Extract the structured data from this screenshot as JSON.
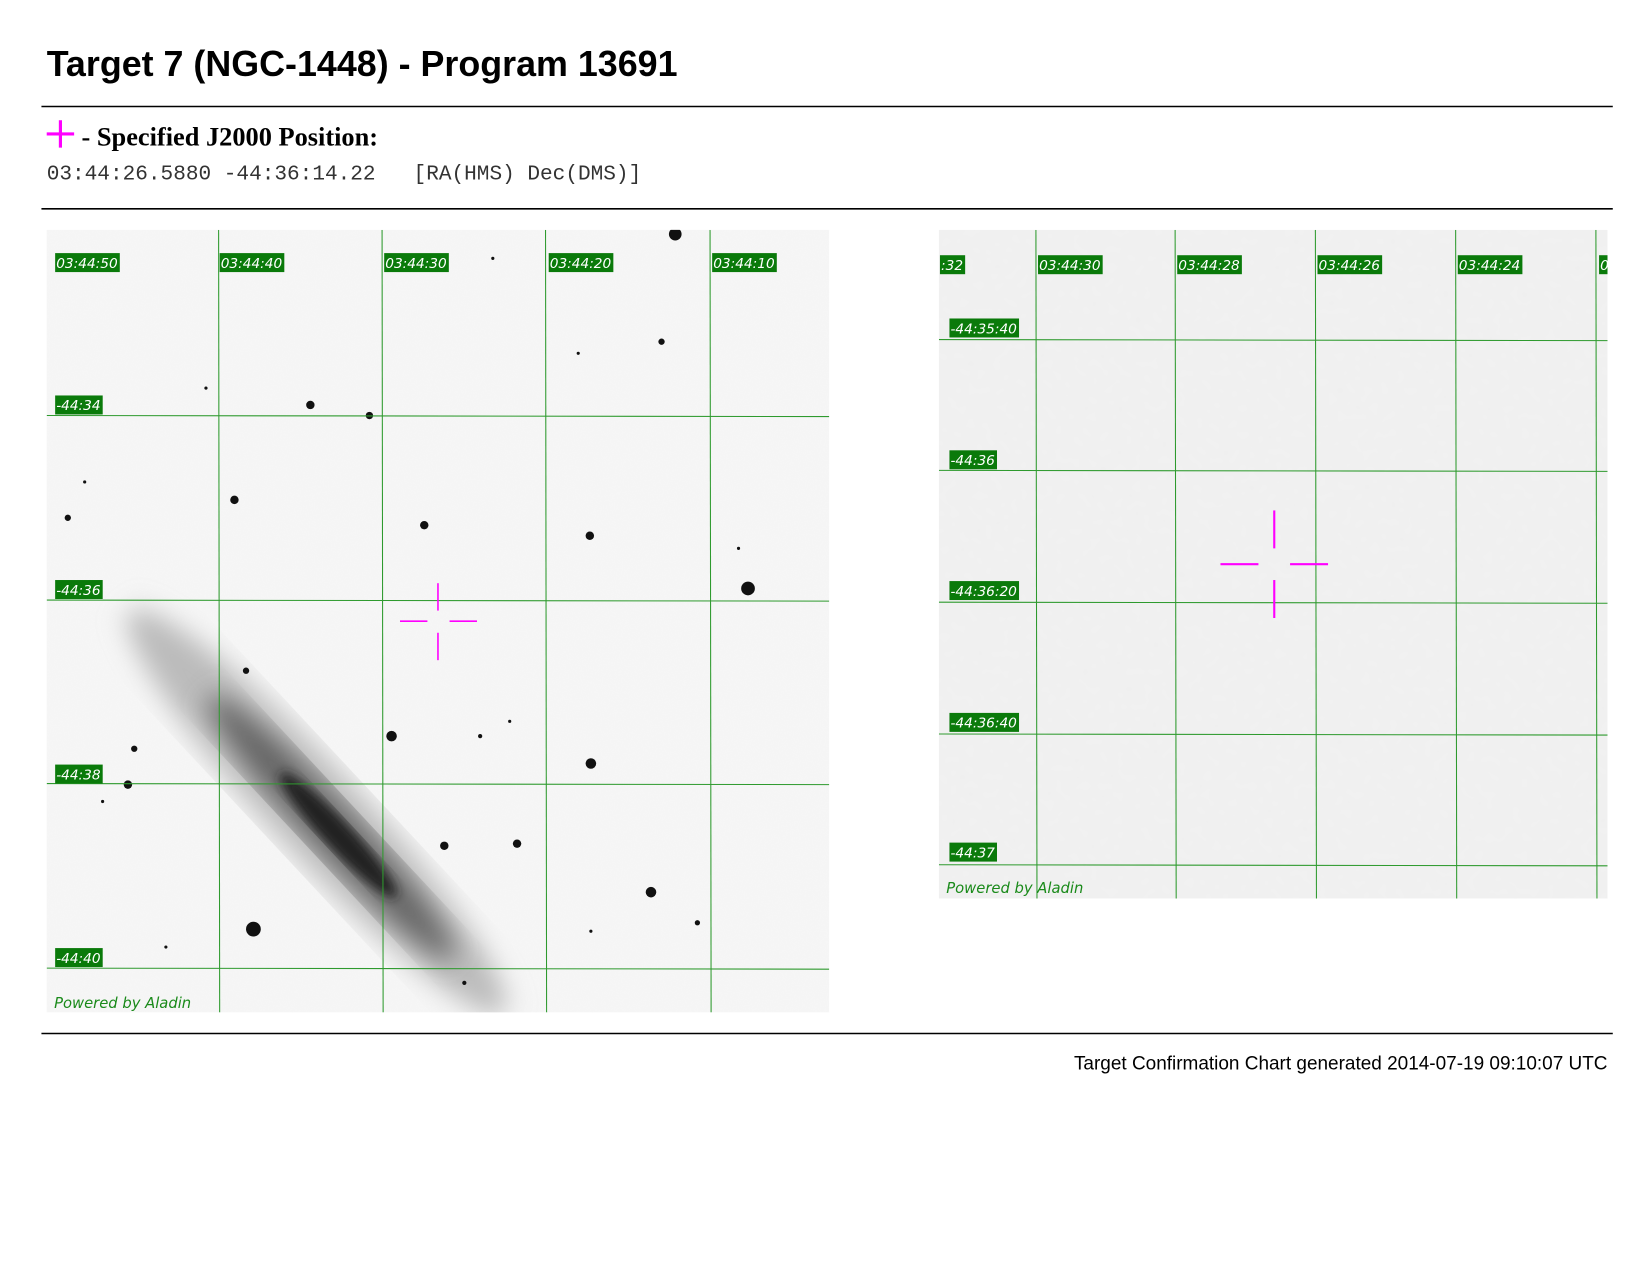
{
  "header": {
    "title": "Target 7 (NGC-1448) - Program 13691"
  },
  "position": {
    "label": "- Specified J2000 Position:",
    "coords": "03:44:26.5880 -44:36:14.22",
    "format": "[RA(HMS) Dec(DMS)]"
  },
  "panels": [
    {
      "ra_labels": [
        "03:44:50",
        "03:44:40",
        "03:44:30",
        "03:44:20",
        "03:44:10"
      ],
      "dec_labels": [
        "-44:34",
        "-44:36",
        "-44:38",
        "-44:40"
      ],
      "credit": "Powered by Aladin"
    },
    {
      "ra_labels": [
        ":32",
        "03:44:30",
        "03:44:28",
        "03:44:26",
        "03:44:24",
        "0"
      ],
      "dec_labels": [
        "-44:35:40",
        "-44:36",
        "-44:36:20",
        "-44:36:40",
        "-44:37"
      ],
      "credit": "Powered by Aladin"
    }
  ],
  "footer": {
    "text": "Target Confirmation Chart generated 2014-07-19 09:10:07 UTC"
  }
}
